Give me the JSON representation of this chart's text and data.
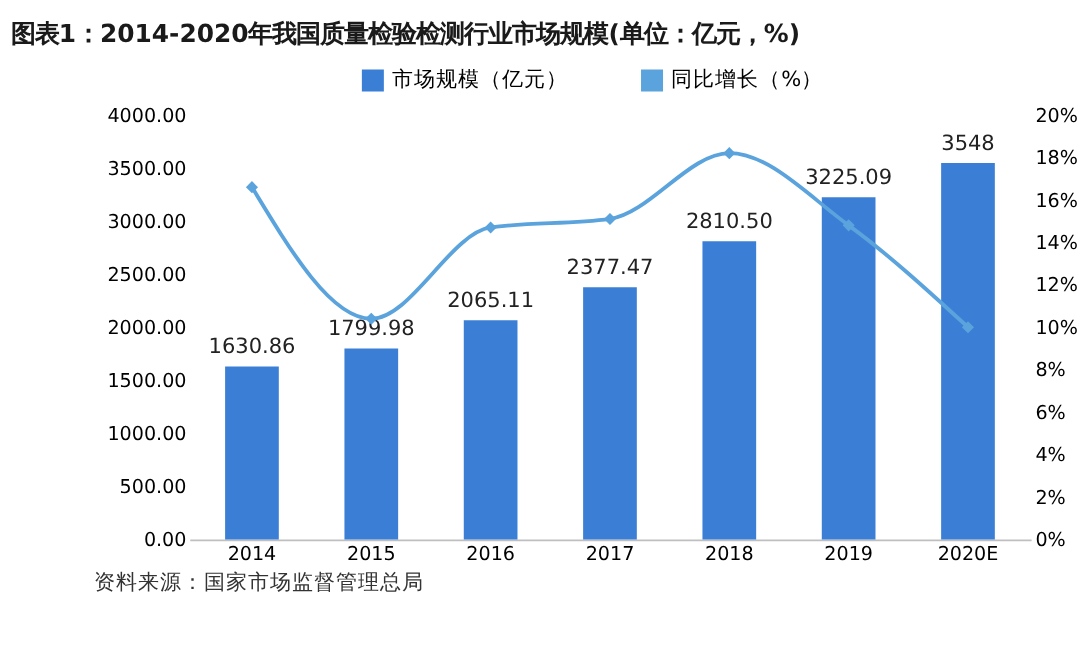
{
  "chart_data": {
    "type": "bar",
    "title": "图表1：2014-2020年我国质量检验检测行业市场规模(单位：亿元，%)",
    "categories": [
      "2014",
      "2015",
      "2016",
      "2017",
      "2018",
      "2019",
      "2020E"
    ],
    "series": [
      {
        "name": "市场规模（亿元）",
        "color": "#3a7fd5",
        "values": [
          1630.86,
          1799.98,
          2065.11,
          2377.47,
          2810.5,
          3225.09,
          3548
        ],
        "value_labels": [
          "1630.86",
          "1799.98",
          "2065.11",
          "2377.47",
          "2810.50",
          "3225.09",
          "3548"
        ]
      },
      {
        "name": "同比增长（%）",
        "type": "line",
        "axis": "y2",
        "color": "#5ba3dc",
        "marker": "diamond",
        "values": [
          16.6,
          10.4,
          14.7,
          15.1,
          18.2,
          14.8,
          10.0
        ]
      }
    ],
    "ylim": [
      0,
      4000
    ],
    "yticks": [
      {
        "value": 0,
        "label": "0.00"
      },
      {
        "value": 500,
        "label": "500.00"
      },
      {
        "value": 1000,
        "label": "1000.00"
      },
      {
        "value": 1500,
        "label": "1500.00"
      },
      {
        "value": 2000,
        "label": "2000.00"
      },
      {
        "value": 2500,
        "label": "2500.00"
      },
      {
        "value": 3000,
        "label": "3000.00"
      },
      {
        "value": 3500,
        "label": "3500.00"
      },
      {
        "value": 4000,
        "label": "4000.00"
      }
    ],
    "y2lim": [
      0,
      20
    ],
    "y2ticks": [
      {
        "value": 0,
        "label": "0%"
      },
      {
        "value": 2,
        "label": "2%"
      },
      {
        "value": 4,
        "label": "4%"
      },
      {
        "value": 6,
        "label": "6%"
      },
      {
        "value": 8,
        "label": "8%"
      },
      {
        "value": 10,
        "label": "10%"
      },
      {
        "value": 12,
        "label": "12%"
      },
      {
        "value": 14,
        "label": "14%"
      },
      {
        "value": 16,
        "label": "16%"
      },
      {
        "value": 18,
        "label": "18%"
      },
      {
        "value": 20,
        "label": "20%"
      }
    ],
    "legend": "top",
    "grid": false,
    "annotations": [
      "资料来源：国家市场监督管理总局"
    ]
  }
}
